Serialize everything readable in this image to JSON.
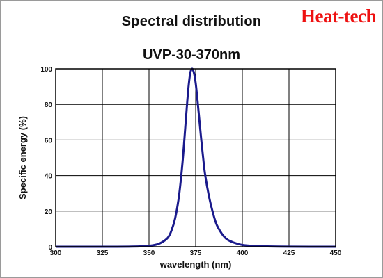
{
  "brand": "Heat-tech",
  "chart_data": {
    "type": "line",
    "title": "Spectral distribution",
    "subtitle": "UVP-30-370nm",
    "xlabel": "wavelength (nm)",
    "ylabel": "Specific energy (%)",
    "xlim": [
      300,
      450
    ],
    "ylim": [
      0,
      100
    ],
    "xticks": [
      300,
      325,
      350,
      375,
      400,
      425,
      450
    ],
    "yticks": [
      0,
      20,
      40,
      60,
      80,
      100
    ],
    "grid": true,
    "line_color": "#1a1a8c",
    "series": [
      {
        "x": [
          300,
          330,
          345,
          352,
          356,
          360,
          362,
          364,
          366,
          368,
          370,
          371,
          372,
          373,
          374,
          375,
          376,
          377,
          378,
          379,
          380,
          382,
          384,
          386,
          388,
          390,
          392,
          395,
          400,
          410,
          425,
          450
        ],
        "values": [
          0,
          0,
          0.2,
          0.8,
          2,
          5,
          9,
          16,
          28,
          48,
          75,
          88,
          97,
          100,
          98,
          92,
          82,
          71,
          60,
          50,
          41,
          29,
          20,
          13,
          9,
          6,
          4,
          2.5,
          1,
          0.3,
          0.05,
          0
        ]
      }
    ]
  }
}
